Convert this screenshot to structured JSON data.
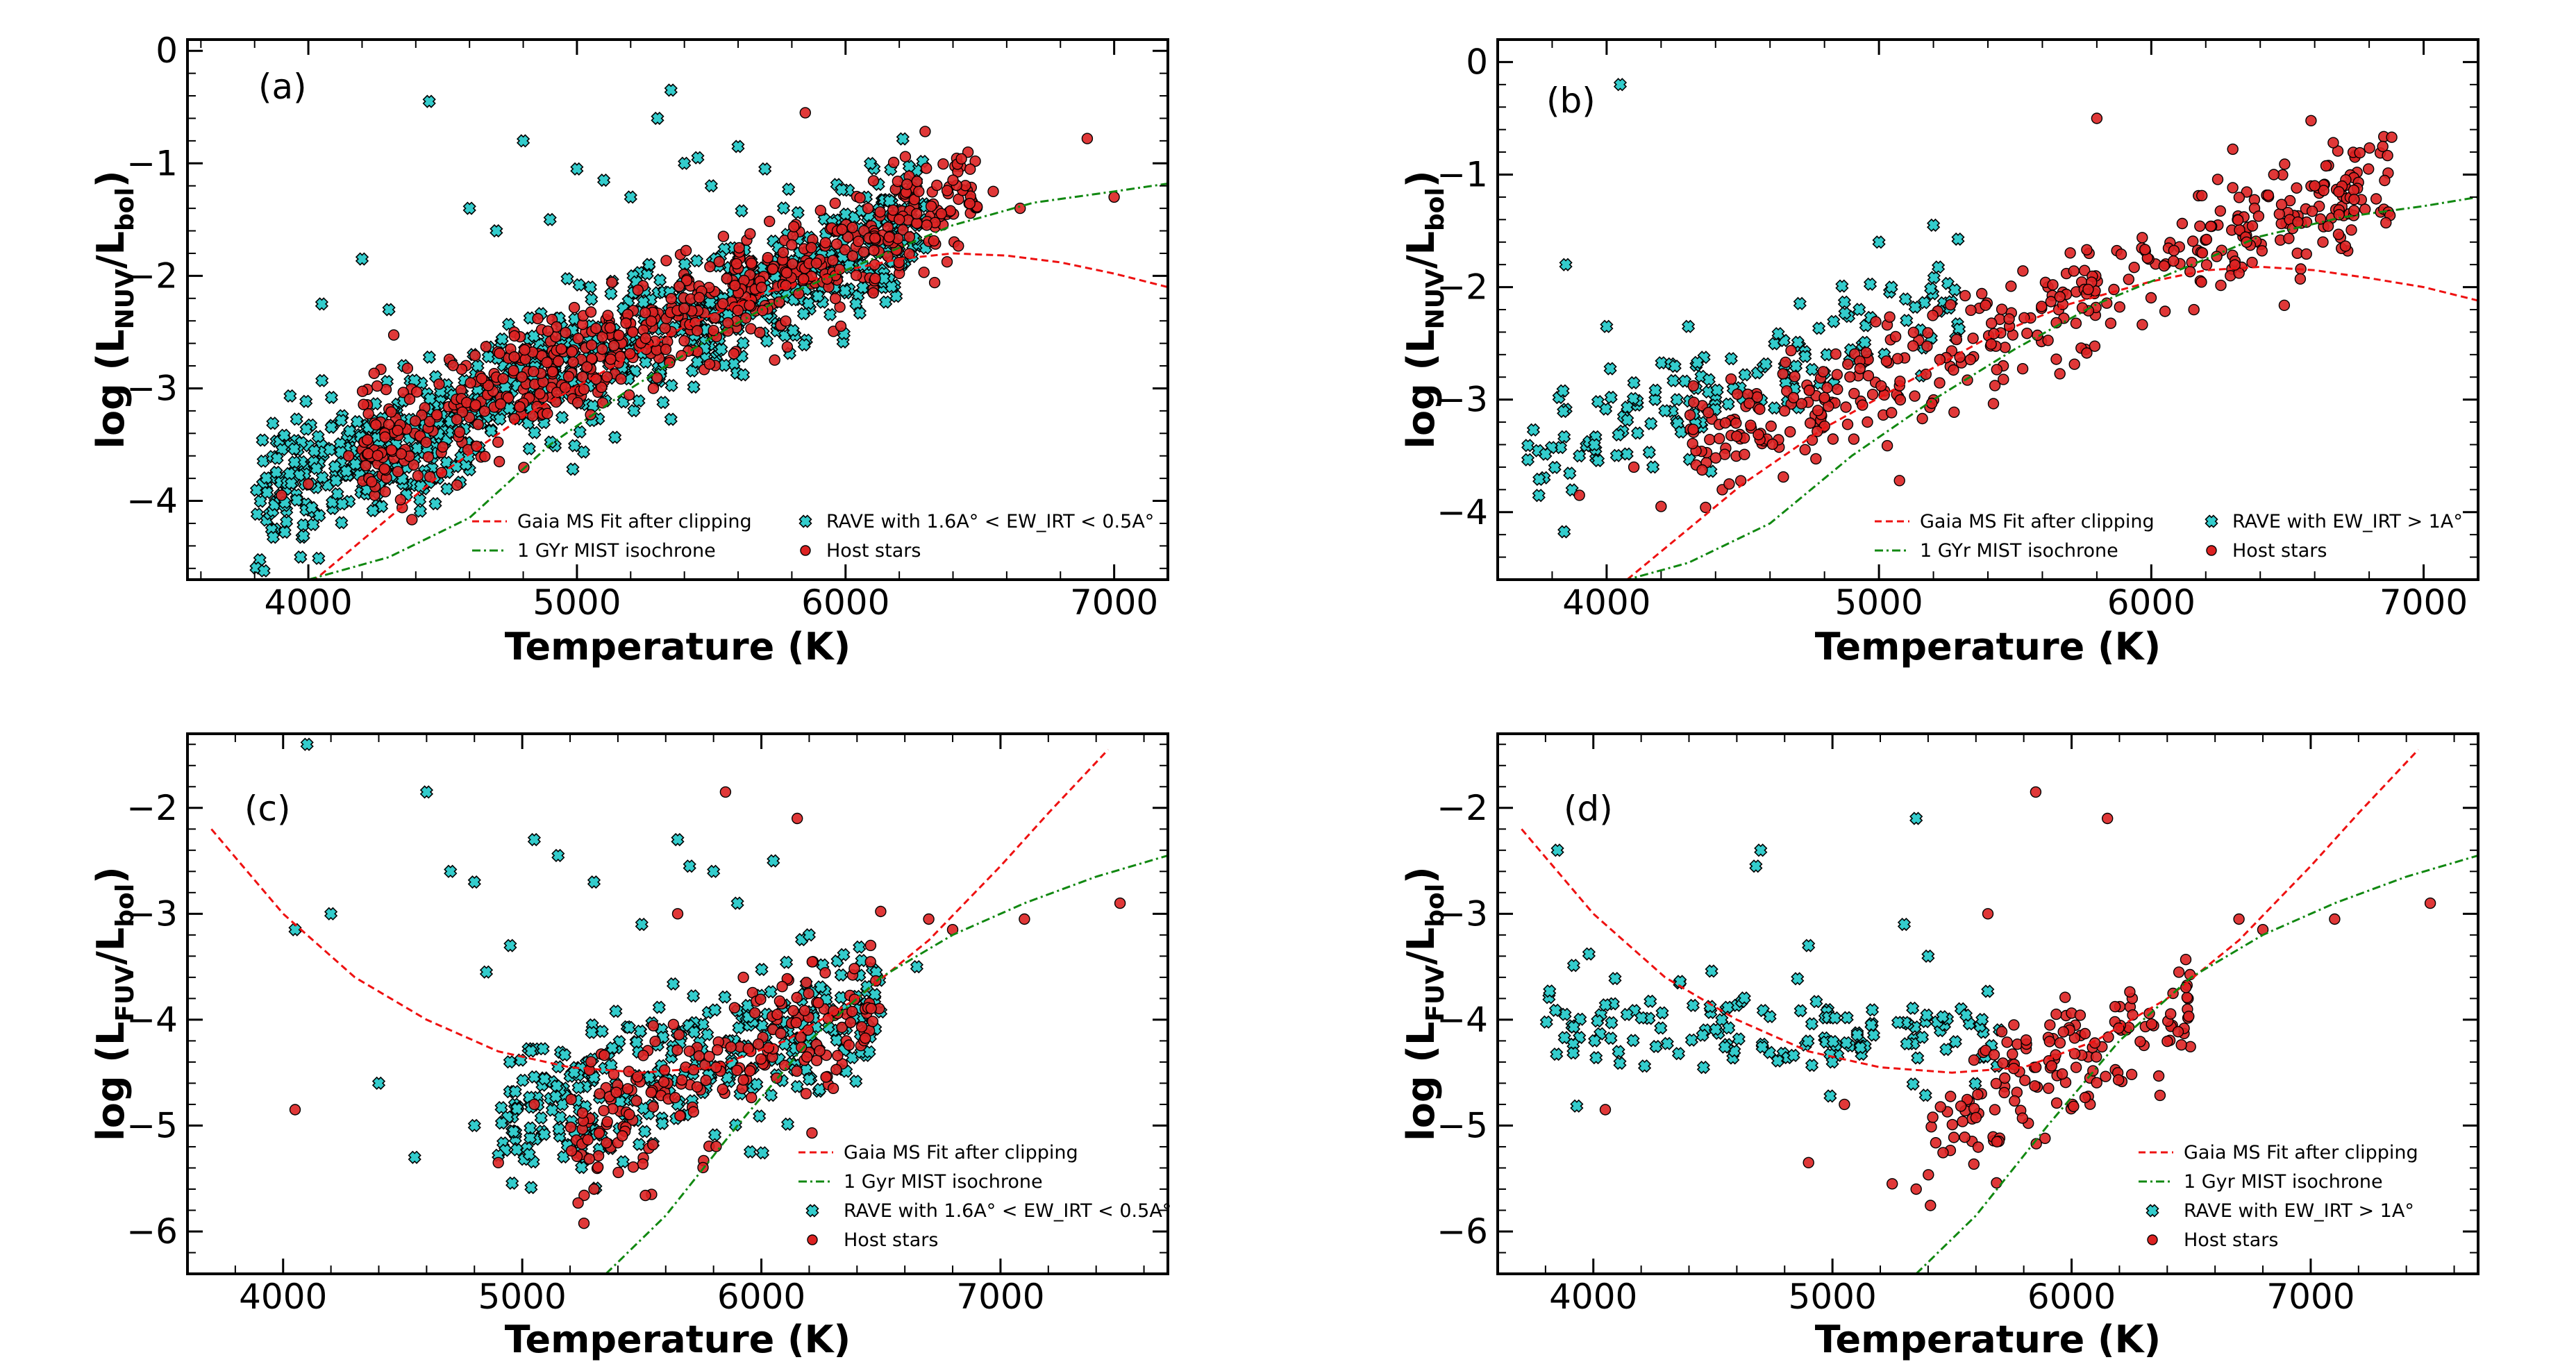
{
  "colors": {
    "gaia_fit": "#ee1111",
    "mist": "#118811",
    "rave_fill": "#33cccc",
    "host_fill": "#dd2222",
    "marker_edge": "#000000"
  },
  "chart_data": [
    {
      "type": "scatter",
      "panel_tag": "(a)",
      "xlabel": "Temperature (K)",
      "ylabel_main": "log (L",
      "ylabel_sub": "NUV",
      "ylabel_mid": "/L",
      "ylabel_sub2": "bol",
      "ylabel_end": ")",
      "xlim": [
        3550,
        7200
      ],
      "ylim": [
        -4.7,
        0.1
      ],
      "xticks": [
        4000,
        5000,
        6000,
        7000
      ],
      "xtick_labels": [
        "4000",
        "5000",
        "6000",
        "7000"
      ],
      "yticks": [
        -4,
        -3,
        -2,
        -1,
        0
      ],
      "ytick_labels": [
        "−4",
        "−3",
        "−2",
        "−1",
        "0"
      ],
      "legend": {
        "gaia": "Gaia MS Fit after clipping",
        "mist": "1 GYr MIST isochrone",
        "rave": "RAVE with 1.6A° < EW_IRT < 0.5A°",
        "host": "Host stars"
      },
      "gaia_fit": {
        "x": [
          3950,
          4200,
          4500,
          4800,
          5100,
          5400,
          5700,
          6000,
          6200,
          6400,
          6600,
          6800,
          7000,
          7200
        ],
        "y": [
          -4.85,
          -4.35,
          -3.75,
          -3.25,
          -2.85,
          -2.45,
          -2.15,
          -1.95,
          -1.85,
          -1.8,
          -1.82,
          -1.88,
          -1.98,
          -2.1
        ]
      },
      "mist": {
        "x": [
          4000,
          4300,
          4600,
          4900,
          5200,
          5500,
          5800,
          6100,
          6400,
          6700,
          7000,
          7200
        ],
        "y": [
          -4.7,
          -4.5,
          -4.15,
          -3.5,
          -3.0,
          -2.55,
          -2.15,
          -1.85,
          -1.55,
          -1.35,
          -1.25,
          -1.18
        ]
      },
      "rave": {
        "cluster": {
          "x_range": [
            3800,
            6300
          ],
          "n": 900,
          "slope": 0.001,
          "intercept": -7.8,
          "scatter": 0.3
        },
        "outliers": {
          "x": [
            4450,
            4800,
            5000,
            5100,
            4200,
            4300,
            4050,
            5300,
            5350,
            5400,
            5600,
            5200,
            4700,
            4600,
            5500,
            5450,
            5700,
            5050,
            4900,
            6300
          ],
          "y": [
            -0.45,
            -0.8,
            -1.05,
            -1.15,
            -1.85,
            -2.3,
            -2.25,
            -0.6,
            -0.35,
            -1.0,
            -0.85,
            -1.3,
            -1.6,
            -1.4,
            -1.2,
            -0.95,
            -1.05,
            -2.1,
            -1.5,
            -1.5
          ]
        }
      },
      "host": {
        "cluster": {
          "x_range": [
            4200,
            6500
          ],
          "n": 650,
          "slope": 0.001,
          "intercept": -7.75,
          "scatter": 0.25
        },
        "outliers": {
          "x": [
            5850,
            6550,
            6900,
            6400,
            6200,
            4000,
            4150,
            3900,
            7000,
            6650
          ],
          "y": [
            -0.55,
            -1.25,
            -0.78,
            -1.15,
            -1.5,
            -3.85,
            -3.6,
            -3.95,
            -1.3,
            -1.4
          ]
        }
      }
    },
    {
      "type": "scatter",
      "panel_tag": "(b)",
      "xlabel": "Temperature (K)",
      "ylabel_main": "log (L",
      "ylabel_sub": "NUV",
      "ylabel_mid": "/L",
      "ylabel_sub2": "bol",
      "ylabel_end": ")",
      "xlim": [
        3600,
        7200
      ],
      "ylim": [
        -4.6,
        0.2
      ],
      "xticks": [
        4000,
        5000,
        6000,
        7000
      ],
      "xtick_labels": [
        "4000",
        "5000",
        "6000",
        "7000"
      ],
      "yticks": [
        -4,
        -3,
        -2,
        -1,
        0
      ],
      "ytick_labels": [
        "−4",
        "−3",
        "−2",
        "−1",
        "0"
      ],
      "legend": {
        "gaia": "Gaia MS Fit after clipping",
        "mist": "1 GYr MIST isochrone",
        "rave": "RAVE with EW_IRT > 1A°",
        "host": "Host stars"
      },
      "gaia_fit": {
        "x": [
          3950,
          4200,
          4500,
          4800,
          5100,
          5400,
          5700,
          6000,
          6200,
          6400,
          6600,
          6800,
          7000,
          7200
        ],
        "y": [
          -4.85,
          -4.35,
          -3.75,
          -3.25,
          -2.85,
          -2.45,
          -2.15,
          -1.95,
          -1.85,
          -1.82,
          -1.85,
          -1.92,
          -2.0,
          -2.12
        ]
      },
      "mist": {
        "x": [
          4000,
          4300,
          4600,
          4900,
          5200,
          5500,
          5800,
          6100,
          6400,
          6700,
          7000,
          7200
        ],
        "y": [
          -4.65,
          -4.45,
          -4.1,
          -3.5,
          -3.0,
          -2.55,
          -2.15,
          -1.85,
          -1.55,
          -1.38,
          -1.28,
          -1.2
        ]
      },
      "rave": {
        "cluster": {
          "x_range": [
            3700,
            5300
          ],
          "n": 150,
          "slope": 0.0009,
          "intercept": -6.9,
          "scatter": 0.25
        },
        "outliers": {
          "x": [
            3850,
            4050,
            4000,
            5000,
            5200,
            4300,
            4100,
            3900
          ],
          "y": [
            -1.8,
            -0.2,
            -2.35,
            -1.6,
            -1.45,
            -2.35,
            -2.85,
            -3.5
          ]
        }
      },
      "host": {
        "cluster": {
          "x_range": [
            4300,
            6900
          ],
          "n": 420,
          "slope": 0.00095,
          "intercept": -7.55,
          "scatter": 0.25
        },
        "outliers": {
          "x": [
            5800,
            6850,
            6600,
            3900,
            4100,
            4450,
            4200,
            6450,
            6350
          ],
          "y": [
            -0.5,
            -0.75,
            -1.1,
            -3.85,
            -3.6,
            -3.75,
            -3.95,
            -1.0,
            -1.6
          ]
        }
      }
    },
    {
      "type": "scatter",
      "panel_tag": "(c)",
      "xlabel": "Temperature (K)",
      "ylabel_main": "log (L",
      "ylabel_sub": "FUV",
      "ylabel_mid": "/L",
      "ylabel_sub2": "bol",
      "ylabel_end": ")",
      "xlim": [
        3600,
        7700
      ],
      "ylim": [
        -6.4,
        -1.3
      ],
      "xticks": [
        4000,
        5000,
        6000,
        7000
      ],
      "xtick_labels": [
        "4000",
        "5000",
        "6000",
        "7000"
      ],
      "yticks": [
        -6,
        -5,
        -4,
        -3,
        -2
      ],
      "ytick_labels": [
        "−6",
        "−5",
        "−4",
        "−3",
        "−2"
      ],
      "legend": {
        "gaia": "Gaia MS Fit after clipping",
        "mist": "1 Gyr MIST isochrone",
        "rave": "RAVE with 1.6A° < EW_IRT < 0.5A°",
        "host": "Host stars"
      },
      "gaia_fit": {
        "x": [
          3700,
          4000,
          4300,
          4600,
          4900,
          5200,
          5500,
          5800,
          6100,
          6400,
          6700,
          7000,
          7200,
          7450
        ],
        "y": [
          -2.2,
          -3.0,
          -3.6,
          -4.0,
          -4.3,
          -4.45,
          -4.5,
          -4.45,
          -4.2,
          -3.8,
          -3.25,
          -2.55,
          -2.05,
          -1.45
        ]
      },
      "mist": {
        "x": [
          5350,
          5600,
          5900,
          6200,
          6500,
          6800,
          7100,
          7400,
          7700
        ],
        "y": [
          -6.4,
          -5.85,
          -5.0,
          -4.2,
          -3.6,
          -3.2,
          -2.9,
          -2.65,
          -2.45
        ]
      },
      "rave": {
        "cluster": {
          "x_range": [
            4900,
            6500
          ],
          "n": 330,
          "slope": 0.0007,
          "intercept": -8.4,
          "scatter": 0.35
        },
        "outliers": {
          "x": [
            4100,
            4600,
            4050,
            4200,
            4700,
            4800,
            5050,
            5150,
            5300,
            5650,
            5700,
            5800,
            6050,
            6200,
            6650,
            4550,
            4950,
            4850,
            5900,
            5500,
            4400,
            4800
          ],
          "y": [
            -1.4,
            -1.85,
            -3.15,
            -3.0,
            -2.6,
            -2.7,
            -2.3,
            -2.45,
            -2.7,
            -2.3,
            -2.55,
            -2.6,
            -2.5,
            -3.2,
            -3.5,
            -5.3,
            -3.3,
            -3.55,
            -2.9,
            -3.1,
            -4.6,
            -5.0
          ]
        }
      },
      "host": {
        "cluster": {
          "x_range": [
            5200,
            6500
          ],
          "n": 220,
          "slope": 0.001,
          "intercept": -10.3,
          "scatter": 0.35
        },
        "outliers": {
          "x": [
            5850,
            6150,
            5650,
            6700,
            6800,
            7100,
            7500,
            4050,
            4900,
            5050,
            5300
          ],
          "y": [
            -1.85,
            -2.1,
            -3.0,
            -3.05,
            -3.15,
            -3.05,
            -2.9,
            -4.85,
            -5.35,
            -4.8,
            -5.6
          ]
        }
      }
    },
    {
      "type": "scatter",
      "panel_tag": "(d)",
      "xlabel": "Temperature (K)",
      "ylabel_main": "log (L",
      "ylabel_sub": "FUV",
      "ylabel_mid": "/L",
      "ylabel_sub2": "bol",
      "ylabel_end": ")",
      "xlim": [
        3600,
        7700
      ],
      "ylim": [
        -6.4,
        -1.3
      ],
      "xticks": [
        4000,
        5000,
        6000,
        7000
      ],
      "xtick_labels": [
        "4000",
        "5000",
        "6000",
        "7000"
      ],
      "yticks": [
        -6,
        -5,
        -4,
        -3,
        -2
      ],
      "ytick_labels": [
        "−6",
        "−5",
        "−4",
        "−3",
        "−2"
      ],
      "legend": {
        "gaia": "Gaia MS Fit after clipping",
        "mist": "1 Gyr MIST isochrone",
        "rave": "RAVE with EW_IRT > 1A°",
        "host": "Host stars"
      },
      "gaia_fit": {
        "x": [
          3700,
          4000,
          4300,
          4600,
          4900,
          5200,
          5500,
          5800,
          6100,
          6400,
          6700,
          7000,
          7200,
          7450
        ],
        "y": [
          -2.2,
          -3.0,
          -3.6,
          -4.0,
          -4.3,
          -4.45,
          -4.5,
          -4.45,
          -4.2,
          -3.8,
          -3.25,
          -2.55,
          -2.05,
          -1.45
        ]
      },
      "mist": {
        "x": [
          5350,
          5600,
          5900,
          6200,
          6500,
          6800,
          7100,
          7400,
          7700
        ],
        "y": [
          -6.4,
          -5.85,
          -5.0,
          -4.2,
          -3.6,
          -3.2,
          -2.9,
          -2.65,
          -2.45
        ]
      },
      "rave": {
        "cluster": {
          "x_range": [
            3800,
            5700
          ],
          "n": 140,
          "slope": -5e-05,
          "intercept": -3.85,
          "scatter": 0.25
        },
        "outliers": {
          "x": [
            3850,
            4700,
            4680,
            5350,
            5300,
            5400,
            5000,
            4900
          ],
          "y": [
            -2.4,
            -2.4,
            -2.55,
            -2.1,
            -3.1,
            -3.4,
            -4.4,
            -3.3
          ]
        }
      },
      "host": {
        "cluster": {
          "x_range": [
            5400,
            6500
          ],
          "n": 160,
          "slope": 0.0011,
          "intercept": -11.0,
          "scatter": 0.3
        },
        "outliers": {
          "x": [
            5850,
            6150,
            5650,
            6700,
            6800,
            7100,
            7500,
            4050,
            4900,
            5050,
            5250,
            5350
          ],
          "y": [
            -1.85,
            -2.1,
            -3.0,
            -3.05,
            -3.15,
            -3.05,
            -2.9,
            -4.85,
            -5.35,
            -4.8,
            -5.55,
            -5.6
          ]
        }
      }
    }
  ]
}
